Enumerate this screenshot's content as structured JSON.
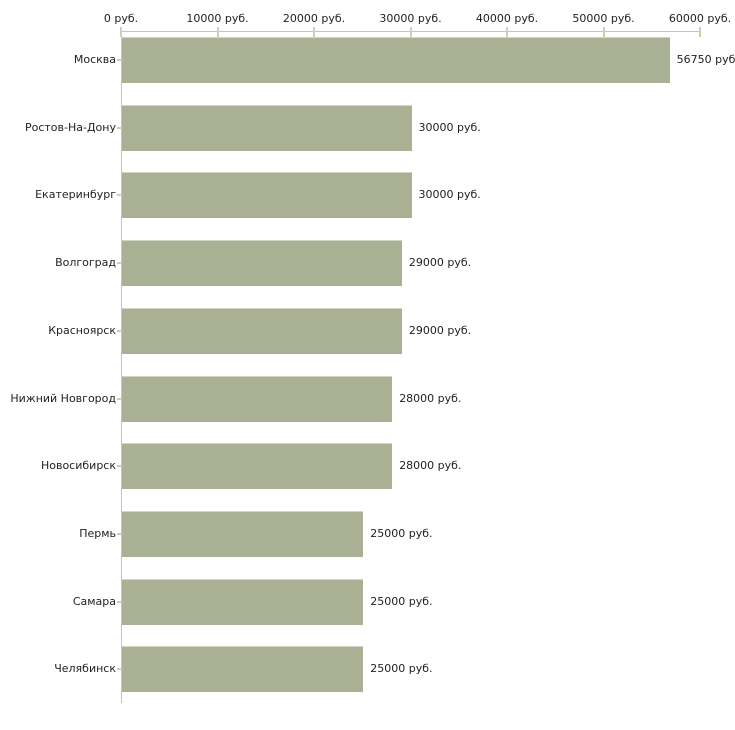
{
  "chart_data": {
    "type": "bar",
    "orientation": "horizontal",
    "title": "",
    "categories": [
      "Москва",
      "Ростов-На-Дону",
      "Екатеринбург",
      "Волгоград",
      "Красноярск",
      "Нижний Новгород",
      "Новосибирск",
      "Пермь",
      "Самара",
      "Челябинск"
    ],
    "values": [
      56750,
      30000,
      30000,
      29000,
      29000,
      28000,
      28000,
      25000,
      25000,
      25000
    ],
    "value_labels": [
      "56750 руб",
      "30000 руб.",
      "30000 руб.",
      "29000 руб.",
      "29000 руб.",
      "28000 руб.",
      "28000 руб.",
      "25000 руб.",
      "25000 руб.",
      "25000 руб."
    ],
    "x_axis": {
      "position": "top",
      "min": 0,
      "max": 60000,
      "tick_values": [
        0,
        10000,
        20000,
        30000,
        40000,
        50000,
        60000
      ],
      "tick_labels": [
        "0 руб.",
        "10000 руб.",
        "20000 руб.",
        "30000 руб.",
        "40000 руб.",
        "50000 руб.",
        "60000 руб."
      ]
    },
    "xlabel": "",
    "ylabel": "",
    "grid": false,
    "legend": false,
    "colors": {
      "bar_fill": "#aab094",
      "bar_top_edge": "#d2d4c6",
      "axis_line": "#c3c3c3",
      "tick_mark": "#cfd1a8",
      "text": "#222222",
      "background": "#ffffff"
    }
  }
}
